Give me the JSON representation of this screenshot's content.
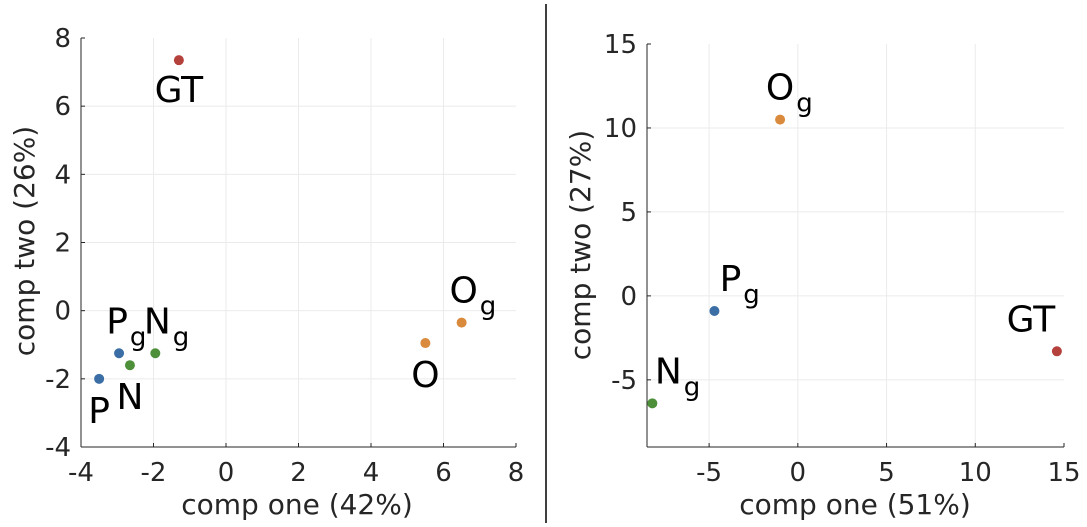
{
  "chart_data": [
    {
      "type": "scatter",
      "xlabel": "comp one (42%)",
      "ylabel": "comp two (26%)",
      "xlim": [
        -4,
        8
      ],
      "ylim": [
        -4,
        8
      ],
      "xticks": [
        -4,
        -2,
        0,
        2,
        4,
        6,
        8
      ],
      "yticks": [
        -4,
        -2,
        0,
        2,
        4,
        6,
        8
      ],
      "xtick_labels": [
        "-4",
        "-2",
        "0",
        "2",
        "4",
        "6",
        "8"
      ],
      "ytick_labels": [
        "-4",
        "-2",
        "0",
        "2",
        "4",
        "6",
        "8"
      ],
      "grid": true,
      "points": [
        {
          "label": "GT",
          "sub": "",
          "x": -1.3,
          "y": 7.35,
          "color": "#b5413d"
        },
        {
          "label": "P",
          "sub": "g",
          "x": -2.95,
          "y": -1.25,
          "color": "#3a6ea5"
        },
        {
          "label": "N",
          "sub": "g",
          "x": -1.95,
          "y": -1.25,
          "color": "#4e8f3a"
        },
        {
          "label": "N",
          "sub": "",
          "x": -2.65,
          "y": -1.6,
          "color": "#4e8f3a"
        },
        {
          "label": "P",
          "sub": "",
          "x": -3.5,
          "y": -2.0,
          "color": "#3a6ea5"
        },
        {
          "label": "O",
          "sub": "g",
          "x": 6.5,
          "y": -0.35,
          "color": "#d98a3d"
        },
        {
          "label": "O",
          "sub": "",
          "x": 5.5,
          "y": -0.95,
          "color": "#d98a3d"
        }
      ]
    },
    {
      "type": "scatter",
      "xlabel": "comp one (51%)",
      "ylabel": "comp two (27%)",
      "xlim": [
        -8.5,
        15
      ],
      "ylim": [
        -9,
        15
      ],
      "xticks": [
        -5,
        0,
        5,
        10,
        15
      ],
      "yticks": [
        -5,
        0,
        5,
        10,
        15
      ],
      "xtick_labels": [
        "-5",
        "0",
        "5",
        "10",
        "15"
      ],
      "ytick_labels": [
        "-5",
        "0",
        "5",
        "10",
        "15"
      ],
      "grid": true,
      "points": [
        {
          "label": "O",
          "sub": "g",
          "x": -1.0,
          "y": 10.5,
          "color": "#d98a3d"
        },
        {
          "label": "P",
          "sub": "g",
          "x": -4.7,
          "y": -0.9,
          "color": "#3a6ea5"
        },
        {
          "label": "GT",
          "sub": "",
          "x": 14.6,
          "y": -3.3,
          "color": "#b5413d"
        },
        {
          "label": "N",
          "sub": "g",
          "x": -8.2,
          "y": -6.4,
          "color": "#4e8f3a"
        }
      ]
    }
  ]
}
